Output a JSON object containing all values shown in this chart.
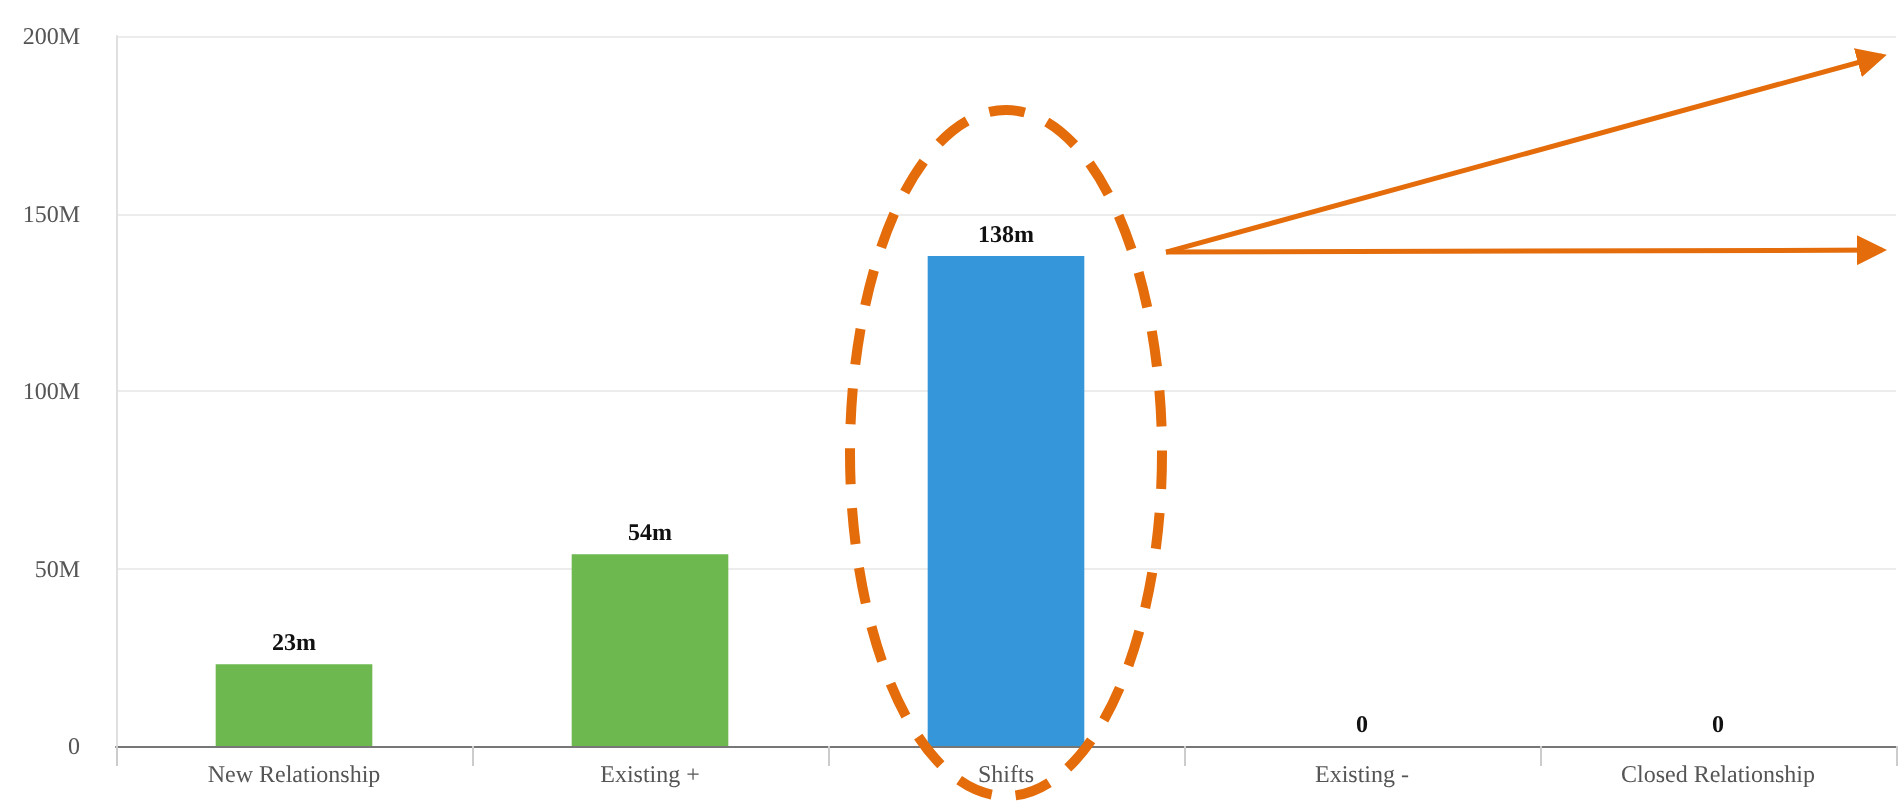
{
  "chart_data": {
    "type": "bar",
    "categories": [
      "New Relationship",
      "Existing +",
      "Shifts",
      "Existing -",
      "Closed Relationship"
    ],
    "values": [
      23000000,
      54000000,
      138000000,
      0,
      0
    ],
    "colors": [
      "#6db84f",
      "#6db84f",
      "#3597d9",
      "#6db84f",
      "#6db84f"
    ],
    "value_labels": [
      "23m",
      "54m",
      "138m",
      "0",
      "0"
    ],
    "ylim": [
      0,
      200000000
    ],
    "yticks": [
      0,
      {
        "value": 50000000,
        "label": "50M"
      },
      {
        "value": 100000000,
        "label": "100M"
      },
      {
        "value": 150000000,
        "label": "150M"
      },
      {
        "value": 200000000,
        "label": "200M"
      }
    ],
    "grid": "y"
  }
}
